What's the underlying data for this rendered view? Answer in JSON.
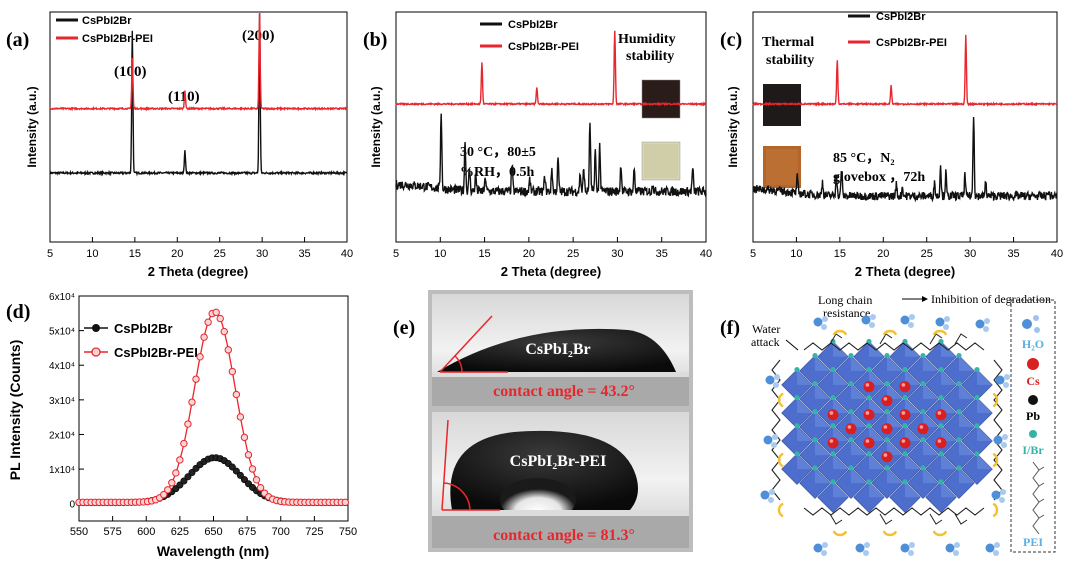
{
  "colors": {
    "black": "#111111",
    "red": "#e8262d",
    "blue": "#3a5fc8",
    "cs": "#d92020",
    "i_br": "#35b3a6",
    "water": "#4f8fd8",
    "water_label": "#5ab0e0",
    "yellow": "#f2c230"
  },
  "chart_data": [
    {
      "panel": "(a)",
      "type": "line",
      "xlabel": "2 Theta (degree)",
      "ylabel": "Intensity (a.u.)",
      "xlim": [
        5,
        40
      ],
      "xticks": [
        5,
        10,
        15,
        20,
        25,
        30,
        35,
        40
      ],
      "xtick_labels": [
        "5",
        "10",
        "15",
        "20",
        "25",
        "30",
        "35",
        "40"
      ],
      "legend": [
        "CsPbI2Br",
        "CsPbI2Br-PEI"
      ],
      "annotations": [
        "(100)",
        "(110)",
        "(200)"
      ],
      "series": [
        {
          "name": "CsPbI2Br",
          "color": "#111111",
          "baseline": 0.3,
          "noise": 0.004,
          "peaks": [
            [
              14.7,
              0.62
            ],
            [
              20.9,
              0.1
            ],
            [
              29.7,
              0.7
            ]
          ]
        },
        {
          "name": "CsPbI2Br-PEI",
          "color": "#e8262d",
          "baseline": 0.58,
          "noise": 0.003,
          "peaks": [
            [
              14.7,
              0.22
            ],
            [
              20.9,
              0.08
            ],
            [
              29.7,
              0.42
            ]
          ]
        }
      ]
    },
    {
      "panel": "(b)",
      "type": "line",
      "xlabel": "2 Theta (degree)",
      "ylabel": "Intensity (a.u.)",
      "xlim": [
        5,
        40
      ],
      "xticks": [
        5,
        10,
        15,
        20,
        25,
        30,
        35,
        40
      ],
      "xtick_labels": [
        "5",
        "10",
        "15",
        "20",
        "25",
        "30",
        "35",
        "40"
      ],
      "legend": [
        "CsPbI2Br",
        "CsPbI2Br-PEI"
      ],
      "annotations": [
        "Humidity",
        "stability",
        "30 °C，80±5",
        "%RH，0.5h"
      ],
      "series": [
        {
          "name": "CsPbI2Br",
          "color": "#111111",
          "baseline": 0.22,
          "noise": 0.02,
          "peaks": [
            [
              10.1,
              0.34
            ],
            [
              12.8,
              0.22
            ],
            [
              13.3,
              0.1
            ],
            [
              14.0,
              0.07
            ],
            [
              15.1,
              0.06
            ],
            [
              18.1,
              0.12
            ],
            [
              20.1,
              0.05
            ],
            [
              21.8,
              0.07
            ],
            [
              22.6,
              0.1
            ],
            [
              23.3,
              0.14
            ],
            [
              25.8,
              0.08
            ],
            [
              26.2,
              0.1
            ],
            [
              26.9,
              0.3
            ],
            [
              27.5,
              0.18
            ],
            [
              28.0,
              0.2
            ],
            [
              30.4,
              0.12
            ],
            [
              31.9,
              0.1
            ],
            [
              34.0,
              0.04
            ],
            [
              38.5,
              0.1
            ]
          ]
        },
        {
          "name": "CsPbI2Br-PEI",
          "color": "#e8262d",
          "baseline": 0.6,
          "noise": 0.003,
          "peaks": [
            [
              14.7,
              0.18
            ],
            [
              20.9,
              0.07
            ],
            [
              29.7,
              0.32
            ]
          ]
        }
      ]
    },
    {
      "panel": "(c)",
      "type": "line",
      "xlabel": "2 Theta (degree)",
      "ylabel": "Intensity (a.u.)",
      "xlim": [
        5,
        40
      ],
      "xticks": [
        5,
        10,
        15,
        20,
        25,
        30,
        35,
        40
      ],
      "xtick_labels": [
        "5",
        "10",
        "15",
        "20",
        "25",
        "30",
        "35",
        "40"
      ],
      "legend": [
        "CsPbI2Br",
        "CsPbI2Br-PEI"
      ],
      "annotations": [
        "Thermal",
        "stability",
        "85 °C，N₂",
        "glovebox ，72h"
      ],
      "series": [
        {
          "name": "CsPbI2Br",
          "color": "#111111",
          "baseline": 0.2,
          "noise": 0.018,
          "peaks": [
            [
              10.1,
              0.07
            ],
            [
              13.0,
              0.06
            ],
            [
              14.6,
              0.1
            ],
            [
              15.2,
              0.12
            ],
            [
              21.5,
              0.05
            ],
            [
              22.2,
              0.04
            ],
            [
              25.9,
              0.06
            ],
            [
              26.6,
              0.14
            ],
            [
              27.2,
              0.1
            ],
            [
              29.4,
              0.09
            ],
            [
              30.4,
              0.36
            ],
            [
              31.8,
              0.06
            ],
            [
              39.0,
              0.02
            ]
          ]
        },
        {
          "name": "CsPbI2Br-PEI",
          "color": "#e8262d",
          "baseline": 0.6,
          "noise": 0.003,
          "peaks": [
            [
              14.7,
              0.19
            ],
            [
              20.9,
              0.08
            ],
            [
              29.5,
              0.3
            ]
          ]
        }
      ]
    },
    {
      "panel": "(d)",
      "type": "line",
      "xlabel": "Wavelength (nm)",
      "ylabel": "PL Intensity (Counts)",
      "xlim": [
        550,
        750
      ],
      "ylim": [
        -5000,
        60000
      ],
      "xticks": [
        550,
        575,
        600,
        625,
        650,
        675,
        700,
        725,
        750
      ],
      "xtick_labels": [
        "550",
        "575",
        "600",
        "625",
        "650",
        "675",
        "700",
        "725",
        "750"
      ],
      "yticks": [
        0,
        10000,
        20000,
        30000,
        40000,
        50000,
        60000
      ],
      "ytick_labels": [
        "0",
        "1x10⁴",
        "2x10⁴",
        "3x10⁴",
        "4x10⁴",
        "5x10⁴",
        "6x10⁴"
      ],
      "legend": [
        "CsPbI2Br",
        "CsPbI2Br-PEI"
      ],
      "series": [
        {
          "name": "CsPbI2Br",
          "color": "#111111",
          "peak_x": 651,
          "peak_y": 13000,
          "sigma": 19,
          "offset": 300
        },
        {
          "name": "CsPbI2Br-PEI",
          "color": "#e8262d",
          "peak_x": 651,
          "peak_y": 55000,
          "sigma": 15,
          "offset": 400
        }
      ]
    }
  ],
  "panel_e": {
    "label": "(e)",
    "top_sample": "CsPbI₂Br",
    "top_angle": "contact angle = 43.2°",
    "bottom_sample": "CsPbI₂Br-PEI",
    "bottom_angle": "contact angle = 81.3°"
  },
  "panel_f": {
    "label": "(f)",
    "long_chain": "Long chain",
    "resistance": "resistance",
    "inhibition": "Inhibition of degradation",
    "water": "Water",
    "attack": "attack",
    "legend": {
      "h2o": "H₂O",
      "cs": "Cs",
      "pb": "Pb",
      "ibr": "I/Br",
      "pei": "PEI"
    }
  }
}
